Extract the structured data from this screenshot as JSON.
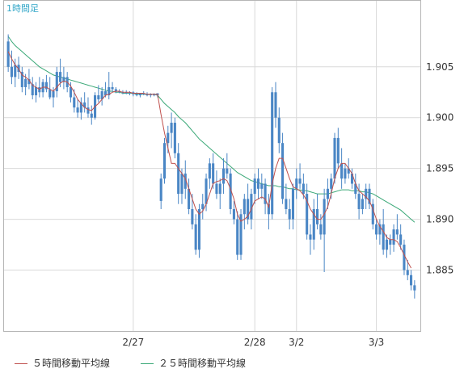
{
  "chart_data": {
    "type": "candlestick",
    "title": "1時間足",
    "y_ticks": [
      "1.905",
      "1.900",
      "1.895",
      "1.890",
      "1.885"
    ],
    "x_ticks": [
      {
        "label": "2/27",
        "index": 36
      },
      {
        "label": "2/28",
        "index": 71
      },
      {
        "label": "3/2",
        "index": 83
      },
      {
        "label": "3/3",
        "index": 106
      }
    ],
    "ylim": [
      1.879,
      1.9115
    ],
    "candles": [
      [
        1.9075,
        1.9082,
        1.9045,
        1.905
      ],
      [
        1.905,
        1.9066,
        1.9033,
        1.904
      ],
      [
        1.904,
        1.9058,
        1.903,
        1.9052
      ],
      [
        1.9052,
        1.906,
        1.9038,
        1.9045
      ],
      [
        1.9045,
        1.905,
        1.9025,
        1.903
      ],
      [
        1.903,
        1.9043,
        1.9022,
        1.9038
      ],
      [
        1.9038,
        1.9048,
        1.9028,
        1.9033
      ],
      [
        1.9033,
        1.904,
        1.9018,
        1.9022
      ],
      [
        1.9022,
        1.9035,
        1.9015,
        1.903
      ],
      [
        1.903,
        1.904,
        1.902,
        1.9025
      ],
      [
        1.9025,
        1.9038,
        1.902,
        1.9035
      ],
      [
        1.9035,
        1.9042,
        1.9025,
        1.9028
      ],
      [
        1.9028,
        1.904,
        1.9018,
        1.902
      ],
      [
        1.902,
        1.903,
        1.901,
        1.9026
      ],
      [
        1.9026,
        1.905,
        1.902,
        1.9045
      ],
      [
        1.9045,
        1.9058,
        1.903,
        1.9035
      ],
      [
        1.9035,
        1.905,
        1.9028,
        1.904
      ],
      [
        1.904,
        1.9045,
        1.9025,
        1.903
      ],
      [
        1.903,
        1.9035,
        1.9015,
        1.902
      ],
      [
        1.902,
        1.9028,
        1.9005,
        1.901
      ],
      [
        1.901,
        1.9018,
        1.9,
        1.9005
      ],
      [
        1.9005,
        1.902,
        1.8998,
        1.9015
      ],
      [
        1.9015,
        1.9025,
        1.9005,
        1.901
      ],
      [
        1.901,
        1.902,
        1.9,
        1.9004
      ],
      [
        1.9004,
        1.9012,
        1.8993,
        1.9
      ],
      [
        1.9,
        1.9025,
        1.8998,
        1.9022
      ],
      [
        1.9022,
        1.9032,
        1.9015,
        1.9018
      ],
      [
        1.9018,
        1.903,
        1.9012,
        1.9026
      ],
      [
        1.9026,
        1.9035,
        1.902,
        1.9022
      ],
      [
        1.9022,
        1.9045,
        1.9018,
        1.903
      ],
      [
        1.903,
        1.9035,
        1.9025,
        1.9028
      ],
      [
        1.9028,
        1.903,
        1.9024,
        1.9026
      ],
      [
        1.9026,
        1.9028,
        1.9024,
        1.9025
      ],
      [
        1.9025,
        1.9027,
        1.9023,
        1.9025
      ],
      [
        1.9025,
        1.9027,
        1.9023,
        1.9024
      ],
      [
        1.9024,
        1.9026,
        1.9022,
        1.9025
      ],
      [
        1.9025,
        1.9026,
        1.9021,
        1.9023
      ],
      [
        1.9023,
        1.9025,
        1.9021,
        1.9022
      ],
      [
        1.9022,
        1.9024,
        1.902,
        1.9024
      ],
      [
        1.9024,
        1.9026,
        1.9022,
        1.9023
      ],
      [
        1.9023,
        1.9025,
        1.9021,
        1.9022
      ],
      [
        1.9022,
        1.9024,
        1.902,
        1.9023
      ],
      [
        1.9023,
        1.9024,
        1.9021,
        1.9022
      ],
      [
        1.9022,
        1.9024,
        1.902,
        1.9024
      ],
      [
        1.8918,
        1.8945,
        1.891,
        1.894
      ],
      [
        1.894,
        1.898,
        1.8935,
        1.8975
      ],
      [
        1.8975,
        1.8992,
        1.8965,
        1.8985
      ],
      [
        1.8985,
        1.9005,
        1.897,
        1.8995
      ],
      [
        1.8995,
        1.9,
        1.896,
        1.8965
      ],
      [
        1.8965,
        1.8975,
        1.8915,
        1.8925
      ],
      [
        1.8925,
        1.895,
        1.8915,
        1.8945
      ],
      [
        1.8945,
        1.8958,
        1.892,
        1.893
      ],
      [
        1.893,
        1.894,
        1.8905,
        1.891
      ],
      [
        1.891,
        1.8925,
        1.889,
        1.8895
      ],
      [
        1.8895,
        1.8905,
        1.8865,
        1.887
      ],
      [
        1.887,
        1.8915,
        1.8862,
        1.891
      ],
      [
        1.891,
        1.8925,
        1.89,
        1.8915
      ],
      [
        1.8915,
        1.8945,
        1.8908,
        1.894
      ],
      [
        1.894,
        1.896,
        1.893,
        1.8955
      ],
      [
        1.8955,
        1.8965,
        1.893,
        1.8935
      ],
      [
        1.8935,
        1.8948,
        1.892,
        1.8925
      ],
      [
        1.8925,
        1.894,
        1.891,
        1.8935
      ],
      [
        1.8935,
        1.896,
        1.8925,
        1.895
      ],
      [
        1.895,
        1.8965,
        1.894,
        1.8945
      ],
      [
        1.8945,
        1.895,
        1.8905,
        1.891
      ],
      [
        1.891,
        1.8918,
        1.8895,
        1.89
      ],
      [
        1.89,
        1.8908,
        1.886,
        1.8865
      ],
      [
        1.8865,
        1.891,
        1.886,
        1.8905
      ],
      [
        1.8905,
        1.8925,
        1.889,
        1.892
      ],
      [
        1.892,
        1.8935,
        1.8895,
        1.89
      ],
      [
        1.89,
        1.893,
        1.889,
        1.8925
      ],
      [
        1.8925,
        1.8945,
        1.8915,
        1.894
      ],
      [
        1.894,
        1.895,
        1.892,
        1.893
      ],
      [
        1.893,
        1.8945,
        1.892,
        1.8935
      ],
      [
        1.8935,
        1.894,
        1.8905,
        1.8915
      ],
      [
        1.8915,
        1.8925,
        1.889,
        1.8905
      ],
      [
        1.8905,
        1.903,
        1.89,
        1.9025
      ],
      [
        1.9025,
        1.9035,
        1.899,
        1.9
      ],
      [
        1.9,
        1.901,
        1.8965,
        1.8975
      ],
      [
        1.8975,
        1.8985,
        1.8915,
        1.892
      ],
      [
        1.892,
        1.8935,
        1.8905,
        1.891
      ],
      [
        1.891,
        1.892,
        1.889,
        1.89
      ],
      [
        1.89,
        1.8935,
        1.889,
        1.893
      ],
      [
        1.893,
        1.895,
        1.892,
        1.894
      ],
      [
        1.894,
        1.8955,
        1.893,
        1.8935
      ],
      [
        1.8935,
        1.8945,
        1.892,
        1.8925
      ],
      [
        1.8925,
        1.8935,
        1.888,
        1.8885
      ],
      [
        1.8885,
        1.8895,
        1.8865,
        1.888
      ],
      [
        1.888,
        1.892,
        1.887,
        1.891
      ],
      [
        1.891,
        1.8925,
        1.889,
        1.8895
      ],
      [
        1.8895,
        1.8905,
        1.888,
        1.8885
      ],
      [
        1.8885,
        1.893,
        1.8848,
        1.892
      ],
      [
        1.892,
        1.894,
        1.891,
        1.893
      ],
      [
        1.893,
        1.8945,
        1.892,
        1.894
      ],
      [
        1.894,
        1.8985,
        1.8935,
        1.898
      ],
      [
        1.898,
        1.899,
        1.895,
        1.8955
      ],
      [
        1.8955,
        1.897,
        1.893,
        1.894
      ],
      [
        1.894,
        1.8955,
        1.8935,
        1.895
      ],
      [
        1.895,
        1.896,
        1.894,
        1.8945
      ],
      [
        1.8945,
        1.895,
        1.893,
        1.8935
      ],
      [
        1.8935,
        1.8945,
        1.892,
        1.8925
      ],
      [
        1.8925,
        1.8935,
        1.89,
        1.891
      ],
      [
        1.891,
        1.8925,
        1.8905,
        1.892
      ],
      [
        1.892,
        1.8935,
        1.891,
        1.893
      ],
      [
        1.893,
        1.8935,
        1.891,
        1.8915
      ],
      [
        1.8915,
        1.892,
        1.889,
        1.8895
      ],
      [
        1.8895,
        1.89,
        1.888,
        1.8885
      ],
      [
        1.8885,
        1.89,
        1.8875,
        1.8895
      ],
      [
        1.8895,
        1.891,
        1.8865,
        1.887
      ],
      [
        1.887,
        1.8885,
        1.8862,
        1.888
      ],
      [
        1.888,
        1.8885,
        1.8865,
        1.8875
      ],
      [
        1.8875,
        1.8895,
        1.8868,
        1.889
      ],
      [
        1.889,
        1.8905,
        1.888,
        1.8885
      ],
      [
        1.8885,
        1.8895,
        1.887,
        1.8875
      ],
      [
        1.8875,
        1.888,
        1.8845,
        1.885
      ],
      [
        1.885,
        1.886,
        1.884,
        1.8845
      ],
      [
        1.8845,
        1.885,
        1.883,
        1.8835
      ],
      [
        1.8835,
        1.884,
        1.8822,
        1.883
      ]
    ],
    "ma5": [
      1.9065,
      1.9058,
      1.9052,
      1.9048,
      1.9042,
      1.904,
      1.9037,
      1.9032,
      1.903,
      1.9028,
      1.903,
      1.903,
      1.9028,
      1.9026,
      1.903,
      1.9034,
      1.9036,
      1.9035,
      1.9031,
      1.9025,
      1.9018,
      1.9014,
      1.901,
      1.9008,
      1.9007,
      1.9011,
      1.9014,
      1.9018,
      1.9022,
      1.9023,
      1.9025,
      1.9026,
      1.9026,
      1.9025,
      1.9025,
      1.9025,
      1.9024,
      1.9024,
      1.9024,
      1.9024,
      1.9023,
      1.9023,
      1.9023,
      1.9023,
      1.9003,
      1.8985,
      1.897,
      1.8955,
      1.8955,
      1.895,
      1.8945,
      1.894,
      1.893,
      1.892,
      1.891,
      1.8905,
      1.8908,
      1.8915,
      1.8925,
      1.8935,
      1.8937,
      1.8938,
      1.894,
      1.8938,
      1.893,
      1.892,
      1.8905,
      1.8898,
      1.89,
      1.8903,
      1.891,
      1.8918,
      1.892,
      1.8922,
      1.892,
      1.8912,
      1.8935,
      1.895,
      1.896,
      1.896,
      1.895,
      1.894,
      1.8932,
      1.893,
      1.8928,
      1.8924,
      1.8918,
      1.891,
      1.8905,
      1.89,
      1.89,
      1.8905,
      1.8912,
      1.8925,
      1.894,
      1.895,
      1.8955,
      1.8955,
      1.895,
      1.8945,
      1.8935,
      1.8928,
      1.8925,
      1.8922,
      1.8918,
      1.891,
      1.89,
      1.8893,
      1.8888,
      1.8882,
      1.888,
      1.888,
      1.8878,
      1.8872,
      1.8865,
      1.8858,
      1.8852
    ],
    "ma25": [
      1.908,
      1.9075,
      1.9071,
      1.9068,
      1.9065,
      1.9062,
      1.9059,
      1.9056,
      1.9053,
      1.905,
      1.9048,
      1.9046,
      1.9044,
      1.9042,
      1.9041,
      1.904,
      1.9039,
      1.9038,
      1.9037,
      1.9036,
      1.9035,
      1.9034,
      1.9033,
      1.9032,
      1.9031,
      1.903,
      1.9029,
      1.9028,
      1.9027,
      1.9026,
      1.9026,
      1.9025,
      1.9025,
      1.9024,
      1.9024,
      1.9024,
      1.9024,
      1.9023,
      1.9023,
      1.9023,
      1.9023,
      1.9023,
      1.9023,
      1.9022,
      1.9018,
      1.9014,
      1.9011,
      1.9008,
      1.9005,
      1.9001,
      1.8998,
      1.8995,
      1.8991,
      1.8987,
      1.8983,
      1.8979,
      1.8976,
      1.8973,
      1.897,
      1.8967,
      1.8964,
      1.8961,
      1.8958,
      1.8955,
      1.8952,
      1.8949,
      1.8946,
      1.8944,
      1.8942,
      1.894,
      1.8938,
      1.8937,
      1.8936,
      1.8935,
      1.8934,
      1.8933,
      1.8933,
      1.8933,
      1.8932,
      1.8932,
      1.8931,
      1.893,
      1.893,
      1.8929,
      1.8929,
      1.8928,
      1.8928,
      1.8927,
      1.8926,
      1.8925,
      1.8925,
      1.8925,
      1.8925,
      1.8926,
      1.8927,
      1.8928,
      1.8929,
      1.8929,
      1.8929,
      1.8928,
      1.8928,
      1.8928,
      1.8927,
      1.8927,
      1.8926,
      1.8925,
      1.8923,
      1.8921,
      1.8919,
      1.8917,
      1.8915,
      1.8913,
      1.8911,
      1.8909,
      1.8906,
      1.8903,
      1.89,
      1.8897
    ],
    "colors": {
      "up": "#4a86c5",
      "down": "#4a86c5",
      "ma5": "#c0504d",
      "ma25": "#3aa877",
      "grid": "#d9d9d9",
      "title": "#33a7c8"
    },
    "legend": [
      {
        "name": "５時間移動平均線",
        "color": "#c0504d"
      },
      {
        "name": "２５時間移動平均線",
        "color": "#3aa877"
      }
    ]
  }
}
